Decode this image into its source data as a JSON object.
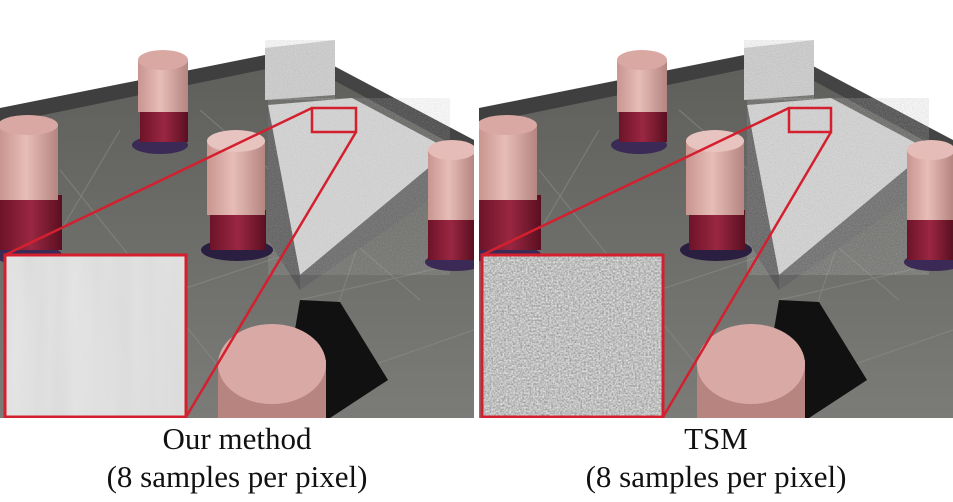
{
  "panels": [
    {
      "caption_title": "Our method",
      "caption_subtitle": "(8 samples per pixel)",
      "inset_noise": "low"
    },
    {
      "caption_title": "TSM",
      "caption_subtitle": "(8 samples per pixel)",
      "inset_noise": "high"
    }
  ],
  "colors": {
    "highlight_frame": "#d4202e",
    "floor": "#6f6f6c",
    "wall": "#3e3e3e",
    "robot_top": "#e0b2ae",
    "robot_band": "#8a1f36",
    "robot_base": "#3a2a55"
  }
}
